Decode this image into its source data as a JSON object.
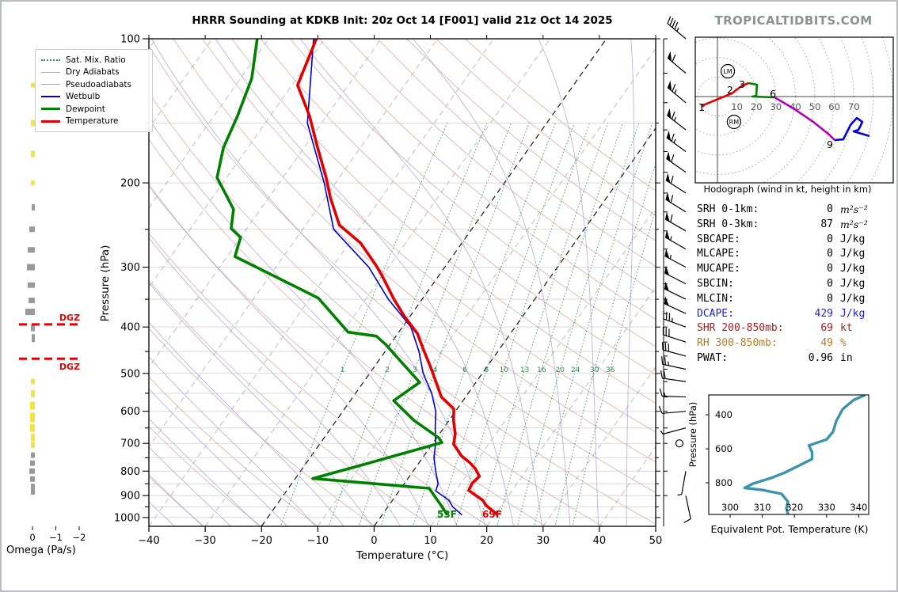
{
  "title": "HRRR Sounding at KDKB Init: 20z Oct 14 [F001] valid 21z Oct 14 2025",
  "branding": "TROPICALTIDBITS.COM",
  "colors": {
    "temperature": "#e00000",
    "dewpoint": "#008000",
    "wetbulb": "#0000cc",
    "dry_adiabat": "#d89b9b",
    "pseudoadiabat": "#a3a3d6",
    "mixing_ratio": "#338a55",
    "isotherm_gray": "#999999",
    "isotherm_black": "#222222",
    "gridline": "#d9d9d9",
    "dgz": "#e00000",
    "omega_up": "#f2e33e",
    "omega_down": "#999999",
    "theta_e_curve": "#3b94ab",
    "hodo_red": "#e00000",
    "hodo_green": "#008000",
    "hodo_magenta": "#b300b3",
    "hodo_blue": "#0000dd",
    "stat_dcape": "#2222cc",
    "stat_shr": "#a02020",
    "stat_rh": "#b08028",
    "brand_gray": "#8d9194"
  },
  "chart_data": {
    "type": "skew-t sounding",
    "skewt": {
      "x_axis": {
        "label": "Temperature (°C)",
        "ticks": [
          -40,
          -30,
          -20,
          -10,
          0,
          10,
          20,
          30,
          40,
          50
        ]
      },
      "y_axis": {
        "label": "Pressure (hPa)",
        "ticks": [
          100,
          200,
          300,
          400,
          500,
          600,
          700,
          800,
          900,
          1000
        ]
      },
      "legend": [
        "Sat. Mix. Ratio",
        "Dry Adiabats",
        "Pseudoadiabats",
        "Wetbulb",
        "Dewpoint",
        "Temperature"
      ],
      "surface_temp_label": "69F",
      "surface_dewp_label": "53F",
      "mixing_ratio_lines": [
        1,
        2,
        3,
        4,
        6,
        8,
        10,
        13,
        16,
        20,
        24,
        30,
        36
      ],
      "profiles": {
        "temperature": [
          [
            100,
            -71.5
          ],
          [
            125,
            -69
          ],
          [
            145,
            -63
          ],
          [
            167,
            -58
          ],
          [
            194,
            -52.5
          ],
          [
            215,
            -49
          ],
          [
            245,
            -44
          ],
          [
            267,
            -38
          ],
          [
            297,
            -32.5
          ],
          [
            313,
            -30
          ],
          [
            350,
            -25
          ],
          [
            380,
            -21
          ],
          [
            413,
            -16.5
          ],
          [
            442,
            -13.8
          ],
          [
            487,
            -9.8
          ],
          [
            560,
            -4.3
          ],
          [
            593,
            -0.6
          ],
          [
            627,
            0.8
          ],
          [
            669,
            2.8
          ],
          [
            703,
            3.8
          ],
          [
            744,
            6.7
          ],
          [
            767,
            8.9
          ],
          [
            790,
            10.7
          ],
          [
            820,
            12.4
          ],
          [
            850,
            12.0
          ],
          [
            878,
            12.3
          ],
          [
            920,
            16.0
          ],
          [
            944,
            17.3
          ],
          [
            986,
            20.4
          ]
        ],
        "dewpoint": [
          [
            100,
            -82
          ],
          [
            121,
            -78
          ],
          [
            145,
            -75.8
          ],
          [
            169,
            -74.3
          ],
          [
            195,
            -71.7
          ],
          [
            227,
            -64.8
          ],
          [
            249,
            -62.8
          ],
          [
            260,
            -60
          ],
          [
            285,
            -58.6
          ],
          [
            348,
            -38.6
          ],
          [
            410,
            -29
          ],
          [
            418,
            -23.5
          ],
          [
            435,
            -20.8
          ],
          [
            522,
            -10
          ],
          [
            570,
            -12.3
          ],
          [
            627,
            -6.2
          ],
          [
            682,
            0.4
          ],
          [
            697,
            1.5
          ],
          [
            775,
            -9.6
          ],
          [
            829,
            -16.9
          ],
          [
            869,
            5
          ],
          [
            944,
            9.3
          ],
          [
            988,
            11.6
          ]
        ],
        "wetbulb": [
          [
            100,
            -72
          ],
          [
            150,
            -62.5
          ],
          [
            200,
            -52
          ],
          [
            250,
            -44.5
          ],
          [
            300,
            -33.5
          ],
          [
            350,
            -26
          ],
          [
            400,
            -18.5
          ],
          [
            450,
            -14
          ],
          [
            500,
            -10.5
          ],
          [
            550,
            -6.5
          ],
          [
            600,
            -3.5
          ],
          [
            650,
            -1.5
          ],
          [
            700,
            0.5
          ],
          [
            750,
            2
          ],
          [
            800,
            4
          ],
          [
            850,
            6
          ],
          [
            880,
            6.5
          ],
          [
            920,
            10
          ],
          [
            950,
            11.5
          ],
          [
            988,
            14.2
          ]
        ]
      },
      "winds": [
        [
          100,
          45,
          310
        ],
        [
          118,
          60,
          310
        ],
        [
          136,
          65,
          310
        ],
        [
          155,
          65,
          308
        ],
        [
          172,
          65,
          306
        ],
        [
          190,
          60,
          305
        ],
        [
          210,
          60,
          303
        ],
        [
          230,
          60,
          302
        ],
        [
          252,
          60,
          300
        ],
        [
          275,
          55,
          300
        ],
        [
          300,
          55,
          298
        ],
        [
          325,
          50,
          297
        ],
        [
          350,
          50,
          296
        ],
        [
          375,
          50,
          295
        ],
        [
          400,
          35,
          290
        ],
        [
          430,
          30,
          288
        ],
        [
          460,
          30,
          285
        ],
        [
          490,
          25,
          282
        ],
        [
          520,
          20,
          278
        ],
        [
          560,
          15,
          272
        ],
        [
          600,
          10,
          265
        ],
        [
          650,
          5,
          255
        ],
        [
          700,
          0,
          0
        ],
        [
          800,
          5,
          190
        ],
        [
          900,
          10,
          168
        ]
      ]
    },
    "omega": {
      "label": "Omega (Pa/s)",
      "ticks": [
        "0",
        "−1",
        "−2"
      ],
      "tick_values": [
        0,
        -1,
        -2
      ],
      "dgz_label": "DGZ",
      "dgz_pressures": [
        395,
        466
      ],
      "bars": [
        {
          "p": 125,
          "w": 2,
          "h": 6,
          "c": "up"
        },
        {
          "p": 150,
          "w": 2,
          "h": 8,
          "c": "up"
        },
        {
          "p": 174,
          "w": 2,
          "h": 8,
          "c": "up"
        },
        {
          "p": 200,
          "w": 2,
          "h": 6,
          "c": "up"
        },
        {
          "p": 225,
          "w": 1,
          "h": 8,
          "c": "down"
        },
        {
          "p": 250,
          "w": 4,
          "h": 7,
          "c": "down"
        },
        {
          "p": 276,
          "w": 6,
          "h": 7,
          "c": "down"
        },
        {
          "p": 300,
          "w": 7,
          "h": 8,
          "c": "down"
        },
        {
          "p": 327,
          "w": 6,
          "h": 7,
          "c": "down"
        },
        {
          "p": 352,
          "w": 5,
          "h": 7,
          "c": "down"
        },
        {
          "p": 372,
          "w": 9,
          "h": 8,
          "c": "down"
        },
        {
          "p": 402,
          "w": 2,
          "h": 8,
          "c": "down"
        },
        {
          "p": 422,
          "w": 1,
          "h": 10,
          "c": "down"
        },
        {
          "p": 520,
          "w": 2,
          "h": 7,
          "c": "up"
        },
        {
          "p": 551,
          "w": 2,
          "h": 9,
          "c": "up"
        },
        {
          "p": 584,
          "w": 3,
          "h": 10,
          "c": "up"
        },
        {
          "p": 618,
          "w": 3,
          "h": 12,
          "c": "up"
        },
        {
          "p": 650,
          "w": 3,
          "h": 10,
          "c": "up"
        },
        {
          "p": 680,
          "w": 2,
          "h": 9,
          "c": "up"
        },
        {
          "p": 705,
          "w": 2,
          "h": 8,
          "c": "up"
        },
        {
          "p": 741,
          "w": 2,
          "h": 7,
          "c": "down"
        },
        {
          "p": 770,
          "w": 3,
          "h": 7,
          "c": "down"
        },
        {
          "p": 800,
          "w": 4,
          "h": 7,
          "c": "down"
        },
        {
          "p": 831,
          "w": 3,
          "h": 7,
          "c": "down"
        },
        {
          "p": 863,
          "w": 2,
          "h": 8,
          "c": "down"
        },
        {
          "p": 886,
          "w": 2,
          "h": 6,
          "c": "down"
        }
      ]
    },
    "hodograph": {
      "caption": "Hodograph (wind in kt, height in km)",
      "ring_interval_kt": 10,
      "ring_labels": [
        10,
        20,
        30,
        40,
        50,
        60,
        70
      ],
      "segments": [
        {
          "color_key": "hodo_red",
          "points": [
            [
              -7.5,
              -4.5
            ],
            [
              7.3,
              1.6
            ],
            [
              12.2,
              5.3
            ],
            [
              15.9,
              6.9
            ]
          ]
        },
        {
          "color_key": "hodo_green",
          "points": [
            [
              15.9,
              6.9
            ],
            [
              20.3,
              6.1
            ],
            [
              19.9,
              0.4
            ],
            [
              17.9,
              0
            ],
            [
              29.3,
              -0.4
            ]
          ]
        },
        {
          "color_key": "hodo_magenta",
          "points": [
            [
              29.3,
              -0.4
            ],
            [
              39,
              -6.1
            ],
            [
              49.2,
              -13
            ],
            [
              57.3,
              -19.5
            ],
            [
              60.2,
              -22.4
            ]
          ]
        },
        {
          "color_key": "hodo_blue",
          "points": [
            [
              60.2,
              -22.4
            ],
            [
              64.6,
              -22
            ],
            [
              68.3,
              -14.6
            ],
            [
              71.5,
              -11
            ],
            [
              74.4,
              -13
            ],
            [
              72.4,
              -17.1
            ],
            [
              69.9,
              -17.9
            ],
            [
              78,
              -20.3
            ]
          ]
        }
      ],
      "height_labels": [
        {
          "text": "1",
          "u": -8.1,
          "v": -5.7
        },
        {
          "text": "2",
          "u": 6.5,
          "v": 3.3
        },
        {
          "text": "3",
          "u": 12.6,
          "v": 6.1
        },
        {
          "text": "6",
          "u": 28.5,
          "v": 1.2
        },
        {
          "text": "9",
          "u": 57.7,
          "v": -24.8
        }
      ],
      "markers": [
        {
          "text": "LM",
          "u": 5.3,
          "v": 13
        },
        {
          "text": "RM",
          "u": 8.5,
          "v": -13
        }
      ]
    },
    "stats": [
      {
        "label": "SRH 0-1km:",
        "value": "0",
        "unit": "m²s⁻²",
        "color": "#000000",
        "math": true
      },
      {
        "label": "SRH 0-3km:",
        "value": "87",
        "unit": "m²s⁻²",
        "color": "#000000",
        "math": true
      },
      {
        "label": "SBCAPE:",
        "value": "0",
        "unit": "J/kg",
        "color": "#000000"
      },
      {
        "label": "MLCAPE:",
        "value": "0",
        "unit": "J/kg",
        "color": "#000000"
      },
      {
        "label": "MUCAPE:",
        "value": "0",
        "unit": "J/kg",
        "color": "#000000"
      },
      {
        "label": "SBCIN:",
        "value": "0",
        "unit": "J/kg",
        "color": "#000000"
      },
      {
        "label": "MLCIN:",
        "value": "0",
        "unit": "J/kg",
        "color": "#000000"
      },
      {
        "label": "DCAPE:",
        "value": "429",
        "unit": "J/kg",
        "color": "#2222cc"
      },
      {
        "label": "SHR 200-850mb:",
        "value": "69",
        "unit": "kt",
        "color": "#a02020"
      },
      {
        "label": "RH 300-850mb:",
        "value": "49",
        "unit": "%",
        "color": "#b08028"
      },
      {
        "label": "PWAT:",
        "value": "0.96",
        "unit": "in",
        "color": "#000000"
      }
    ],
    "theta_e": {
      "xlabel": "Equivalent Pot. Temperature (K)",
      "ylabel": "Pressure (hPa)",
      "x_ticks": [
        300,
        310,
        320,
        330,
        340
      ],
      "y_ticks": [
        400,
        600,
        800
      ],
      "profile": [
        [
          318,
          986
        ],
        [
          317.5,
          950
        ],
        [
          318,
          912
        ],
        [
          316,
          865
        ],
        [
          310,
          842
        ],
        [
          304.5,
          830
        ],
        [
          307,
          806
        ],
        [
          313,
          770
        ],
        [
          317,
          740
        ],
        [
          322,
          693
        ],
        [
          325.5,
          660
        ],
        [
          325.5,
          620
        ],
        [
          325,
          600
        ],
        [
          324.5,
          580
        ],
        [
          330,
          545
        ],
        [
          332,
          500
        ],
        [
          333,
          437
        ],
        [
          335,
          367
        ],
        [
          338.5,
          312
        ],
        [
          342,
          284
        ]
      ]
    }
  }
}
